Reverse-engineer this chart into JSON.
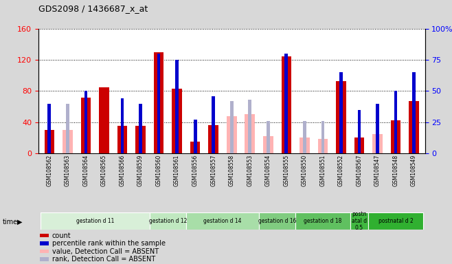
{
  "title": "GDS2098 / 1436687_x_at",
  "samples": [
    "GSM108562",
    "GSM108563",
    "GSM108564",
    "GSM108565",
    "GSM108566",
    "GSM108559",
    "GSM108560",
    "GSM108561",
    "GSM108556",
    "GSM108557",
    "GSM108558",
    "GSM108553",
    "GSM108554",
    "GSM108555",
    "GSM108550",
    "GSM108551",
    "GSM108552",
    "GSM108567",
    "GSM108547",
    "GSM108548",
    "GSM108549"
  ],
  "count_values": [
    30,
    0,
    72,
    85,
    35,
    35,
    130,
    83,
    15,
    36,
    0,
    0,
    0,
    125,
    0,
    0,
    93,
    20,
    0,
    42,
    67
  ],
  "rank_values": [
    40,
    0,
    50,
    0,
    44,
    40,
    80,
    75,
    27,
    46,
    0,
    0,
    0,
    80,
    0,
    0,
    65,
    35,
    40,
    50,
    65
  ],
  "absent_count": [
    0,
    30,
    0,
    0,
    0,
    0,
    0,
    0,
    0,
    0,
    48,
    50,
    22,
    0,
    20,
    18,
    0,
    0,
    25,
    0,
    0
  ],
  "absent_rank": [
    0,
    40,
    0,
    0,
    0,
    0,
    0,
    0,
    0,
    0,
    42,
    43,
    26,
    0,
    26,
    26,
    0,
    0,
    0,
    0,
    0
  ],
  "groups": [
    {
      "label": "gestation d 11",
      "start": 0,
      "end": 6,
      "color": "#d8efd8"
    },
    {
      "label": "gestation d 12",
      "start": 6,
      "end": 8,
      "color": "#c0e8c0"
    },
    {
      "label": "gestation d 14",
      "start": 8,
      "end": 12,
      "color": "#a8dea8"
    },
    {
      "label": "gestation d 16",
      "start": 12,
      "end": 14,
      "color": "#80cc80"
    },
    {
      "label": "gestation d 18",
      "start": 14,
      "end": 17,
      "color": "#60c060"
    },
    {
      "label": "postn\natal d\n0.5",
      "start": 17,
      "end": 18,
      "color": "#40b840"
    },
    {
      "label": "postnatal d 2",
      "start": 18,
      "end": 21,
      "color": "#30b030"
    }
  ],
  "left_ylim": [
    0,
    160
  ],
  "right_ylim": [
    0,
    100
  ],
  "left_yticks": [
    0,
    40,
    80,
    120,
    160
  ],
  "right_yticks": [
    0,
    25,
    50,
    75,
    100
  ],
  "right_yticklabels": [
    "0",
    "25",
    "50",
    "75",
    "100%"
  ],
  "bar_color": "#cc0000",
  "rank_color": "#0000cc",
  "absent_bar_color": "#ffb3b3",
  "absent_rank_color": "#b0b0cc",
  "bg_color": "#d8d8d8",
  "plot_bg_color": "#ffffff",
  "xtick_bg": "#c8c8c8"
}
